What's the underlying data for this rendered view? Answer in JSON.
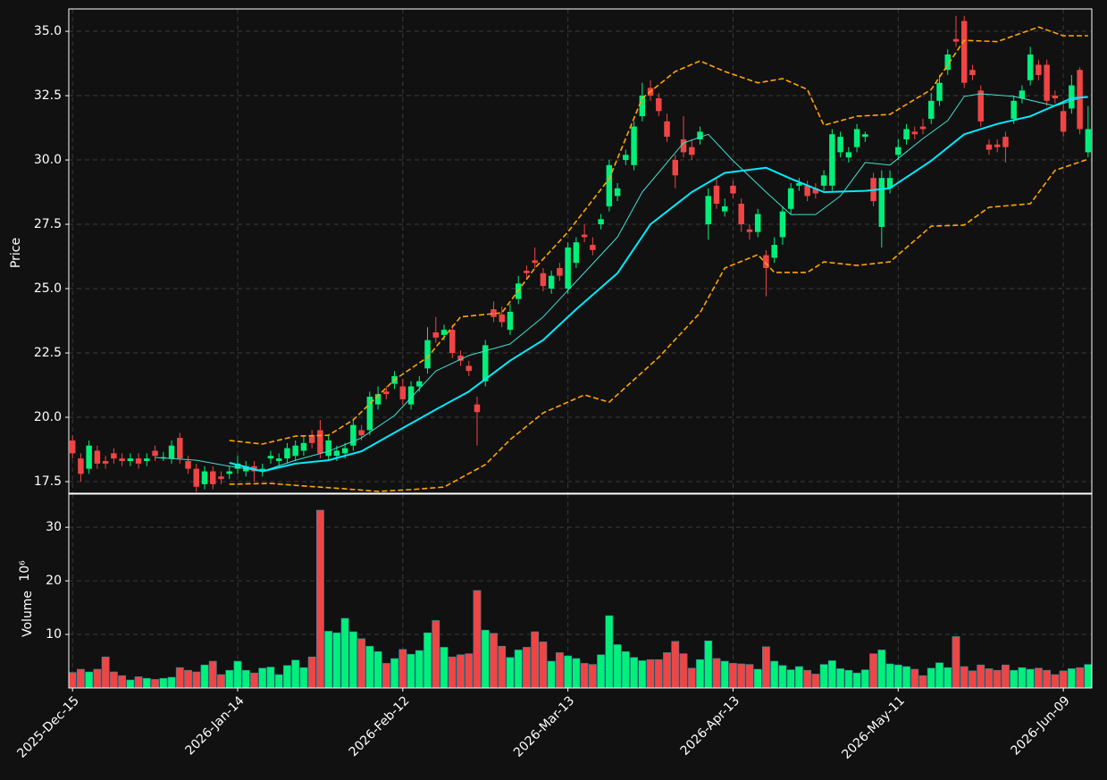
{
  "chart_data": {
    "type": "candlestick",
    "ylabel": "Price",
    "ylim": [
      17.05,
      35.87
    ],
    "yticks": [
      17.5,
      {
        "value": 20,
        "label": "20.0"
      },
      22.5,
      {
        "value": 25,
        "label": "25.0"
      },
      27.5,
      {
        "value": 30,
        "label": "30.0"
      },
      32.5,
      {
        "value": 35,
        "label": "35.0"
      }
    ],
    "xlim": [
      -0.45,
      123.45
    ],
    "xticks": [
      {
        "value": 0,
        "label": "2025-Dec-15"
      },
      {
        "value": 20,
        "label": "2026-Jan-14"
      },
      {
        "value": 40,
        "label": "2026-Feb-12"
      },
      {
        "value": 60,
        "label": "2026-Mar-13"
      },
      {
        "value": 80,
        "label": "2026-Apr-13"
      },
      {
        "value": 100,
        "label": "2026-May-11"
      },
      {
        "value": 120,
        "label": "2026-Jun-09"
      }
    ],
    "grid": true,
    "up_color": "#00f07a",
    "down_color": "#f04545",
    "open": [
      19.1,
      18.4,
      18.0,
      18.7,
      18.3,
      18.6,
      18.4,
      18.3,
      18.4,
      18.3,
      18.7,
      18.4,
      18.4,
      19.2,
      18.3,
      18.0,
      17.4,
      17.9,
      17.7,
      17.8,
      18.0,
      17.9,
      18.1,
      17.95,
      18.4,
      18.3,
      18.4,
      18.5,
      18.7,
      19.3,
      19.5,
      18.5,
      18.5,
      18.6,
      18.9,
      19.5,
      19.5,
      20.5,
      21.0,
      21.3,
      21.2,
      20.5,
      21.2,
      21.9,
      23.3,
      23.2,
      23.4,
      22.4,
      22.0,
      20.5,
      21.4,
      24.2,
      24.0,
      23.4,
      24.6,
      25.7,
      26.1,
      25.6,
      25.0,
      25.8,
      25.0,
      26.0,
      27.1,
      26.7,
      27.5,
      28.2,
      28.6,
      30.0,
      29.8,
      31.7,
      32.8,
      32.4,
      31.5,
      30.0,
      30.8,
      30.5,
      30.8,
      27.5,
      29.0,
      28.0,
      29.0,
      28.3,
      27.3,
      27.2,
      26.3,
      26.2,
      27.0,
      28.1,
      29.0,
      29.0,
      28.9,
      29.0,
      29.0,
      30.3,
      30.1,
      30.5,
      30.9,
      29.3,
      27.4,
      28.9,
      30.2,
      30.8,
      31.1,
      31.3,
      31.6,
      32.3,
      33.5,
      34.7,
      35.4,
      33.5,
      32.7,
      30.6,
      30.6,
      30.9,
      31.6,
      32.4,
      33.1,
      33.7,
      33.7,
      32.5,
      31.9,
      32.0,
      33.5,
      30.3
    ],
    "high": [
      19.3,
      18.6,
      19.1,
      18.9,
      18.5,
      18.8,
      18.6,
      18.6,
      18.6,
      18.6,
      18.9,
      18.65,
      19.1,
      19.4,
      18.5,
      18.2,
      18.1,
      18.1,
      17.9,
      18.1,
      18.5,
      18.3,
      18.3,
      18.2,
      18.7,
      18.6,
      19.0,
      19.1,
      19.3,
      19.5,
      19.9,
      19.3,
      18.9,
      19.0,
      19.9,
      19.7,
      21.0,
      21.2,
      21.2,
      21.8,
      21.5,
      21.4,
      21.6,
      23.5,
      23.9,
      23.6,
      23.6,
      22.6,
      22.2,
      20.8,
      23.0,
      24.5,
      24.3,
      24.4,
      25.5,
      25.9,
      26.6,
      25.8,
      25.7,
      26.0,
      26.8,
      27.0,
      27.5,
      27.0,
      27.9,
      30.0,
      29.1,
      30.4,
      31.5,
      33.0,
      33.1,
      32.6,
      31.8,
      30.2,
      31.7,
      30.8,
      31.3,
      28.9,
      29.3,
      28.5,
      29.2,
      28.5,
      27.5,
      28.1,
      26.5,
      27.0,
      28.2,
      29.1,
      29.3,
      29.2,
      29.1,
      29.6,
      31.2,
      31.1,
      30.5,
      31.4,
      31.1,
      29.5,
      29.6,
      29.6,
      30.8,
      31.4,
      31.3,
      31.6,
      32.6,
      33.3,
      34.3,
      35.6,
      35.6,
      33.7,
      32.9,
      30.8,
      30.8,
      31.1,
      32.5,
      32.9,
      34.4,
      33.9,
      33.9,
      32.7,
      32.3,
      33.3,
      33.6,
      32.1
    ],
    "low": [
      18.4,
      17.5,
      17.8,
      18.0,
      18.0,
      18.2,
      18.1,
      18.1,
      18.0,
      18.1,
      18.3,
      18.3,
      18.2,
      18.2,
      17.8,
      17.1,
      17.2,
      17.2,
      17.4,
      17.6,
      17.8,
      17.7,
      17.5,
      17.7,
      18.2,
      18.1,
      18.2,
      18.3,
      18.5,
      18.8,
      18.4,
      18.3,
      18.3,
      18.4,
      18.7,
      19.1,
      19.3,
      20.3,
      20.7,
      21.1,
      20.5,
      20.3,
      21.0,
      21.7,
      22.9,
      23.0,
      22.3,
      22.0,
      21.6,
      18.9,
      21.2,
      23.7,
      23.5,
      23.2,
      24.4,
      25.4,
      25.8,
      24.9,
      24.8,
      25.3,
      24.8,
      25.8,
      26.8,
      26.3,
      27.3,
      28.0,
      28.4,
      29.8,
      29.6,
      31.5,
      32.3,
      31.7,
      30.7,
      28.9,
      30.1,
      30.0,
      30.6,
      26.9,
      28.1,
      27.8,
      28.5,
      27.2,
      26.9,
      27.0,
      24.7,
      26.0,
      26.7,
      27.9,
      28.8,
      28.4,
      28.5,
      28.8,
      28.8,
      30.1,
      29.9,
      30.3,
      30.7,
      28.2,
      26.6,
      28.7,
      30.0,
      30.6,
      30.8,
      31.0,
      31.4,
      32.1,
      33.3,
      34.4,
      32.8,
      33.1,
      31.3,
      30.2,
      30.3,
      29.9,
      31.4,
      32.2,
      32.9,
      33.1,
      32.1,
      32.2,
      30.9,
      31.8,
      31.0,
      30.1
    ],
    "close": [
      18.6,
      17.8,
      18.9,
      18.2,
      18.2,
      18.4,
      18.3,
      18.4,
      18.2,
      18.4,
      18.5,
      18.45,
      18.9,
      18.4,
      18.0,
      17.3,
      17.9,
      17.4,
      17.6,
      17.9,
      18.2,
      18.1,
      17.9,
      18.0,
      18.5,
      18.4,
      18.8,
      18.9,
      19.0,
      19.0,
      18.6,
      19.1,
      18.7,
      18.8,
      19.7,
      19.3,
      20.8,
      20.9,
      20.9,
      21.6,
      20.7,
      21.2,
      21.4,
      23.0,
      23.1,
      23.4,
      22.5,
      22.2,
      21.8,
      20.2,
      22.8,
      23.9,
      23.7,
      24.1,
      25.2,
      25.6,
      26.0,
      25.1,
      25.5,
      25.5,
      26.6,
      26.8,
      27.0,
      26.5,
      27.7,
      29.8,
      28.9,
      30.2,
      31.3,
      32.5,
      32.5,
      31.9,
      30.9,
      29.4,
      30.3,
      30.2,
      31.1,
      28.6,
      28.3,
      28.2,
      28.7,
      27.5,
      27.2,
      27.9,
      25.8,
      26.7,
      28.0,
      28.9,
      29.1,
      28.6,
      28.7,
      29.4,
      31.0,
      30.9,
      30.3,
      31.2,
      31.0,
      28.4,
      29.3,
      29.3,
      30.5,
      31.2,
      31.0,
      31.2,
      32.3,
      33.0,
      34.1,
      34.6,
      33.0,
      33.3,
      31.5,
      30.4,
      30.5,
      30.5,
      32.3,
      32.7,
      34.1,
      33.3,
      32.3,
      32.4,
      31.1,
      32.9,
      31.2,
      31.2
    ],
    "lines": [
      {
        "color": "#ffa500",
        "width": 1.6,
        "dashed": true,
        "x": [
          19,
          23,
          27,
          31,
          34,
          39,
          43,
          47,
          52,
          56,
          60,
          65,
          69,
          73,
          76,
          79,
          83,
          86,
          89,
          91,
          95,
          99,
          104,
          108,
          112,
          117,
          120,
          123
        ],
        "values": [
          19.1,
          18.96,
          19.27,
          19.3,
          19.9,
          21.46,
          22.33,
          23.9,
          24.06,
          25.8,
          27.2,
          29.27,
          32.4,
          33.44,
          33.85,
          33.44,
          33.0,
          33.16,
          32.74,
          31.35,
          31.7,
          31.77,
          32.74,
          34.65,
          34.6,
          35.17,
          34.83,
          34.83
        ]
      },
      {
        "color": "#ffa500",
        "width": 1.6,
        "dashed": true,
        "x": [
          19,
          24,
          28,
          33,
          37,
          41,
          45,
          50,
          53,
          57,
          62,
          65,
          68,
          71,
          76,
          79,
          83,
          85,
          89,
          91,
          95,
          99,
          104,
          108,
          111,
          116,
          119,
          123
        ],
        "values": [
          17.4,
          17.43,
          17.33,
          17.22,
          17.12,
          17.19,
          17.29,
          18.16,
          19.13,
          20.17,
          20.87,
          20.59,
          21.46,
          22.33,
          24.06,
          25.8,
          26.32,
          25.63,
          25.63,
          26.04,
          25.9,
          26.04,
          27.43,
          27.47,
          28.16,
          28.3,
          29.6,
          30.03
        ]
      },
      {
        "color": "#40e0d0",
        "width": 1,
        "dashed": false,
        "x": [
          10,
          15,
          19,
          23,
          27,
          31,
          35,
          39,
          44,
          48,
          53,
          57,
          61,
          66,
          69,
          74,
          77,
          80,
          84,
          87,
          90,
          93,
          96,
          99,
          103,
          106,
          108,
          110,
          114,
          119,
          122
        ],
        "values": [
          18.44,
          18.33,
          18.1,
          17.9,
          18.33,
          18.68,
          19.2,
          20.07,
          21.8,
          22.4,
          22.85,
          23.9,
          25.28,
          27.0,
          28.75,
          30.66,
          31.0,
          29.97,
          28.75,
          27.88,
          27.88,
          28.6,
          29.9,
          29.8,
          30.83,
          31.53,
          32.47,
          32.57,
          32.47,
          32.1,
          32.4
        ]
      },
      {
        "color": "#00eaff",
        "width": 2,
        "dashed": false,
        "x": [
          19,
          23,
          27,
          31,
          35,
          39,
          44,
          48,
          53,
          57,
          61,
          66,
          70,
          75,
          79,
          84,
          87,
          91,
          96,
          99,
          104,
          108,
          112,
          116,
          121,
          123
        ],
        "values": [
          18.23,
          17.9,
          18.2,
          18.33,
          18.68,
          19.4,
          20.3,
          21.0,
          22.2,
          23.0,
          24.2,
          25.6,
          27.5,
          28.75,
          29.5,
          29.7,
          29.27,
          28.75,
          28.8,
          28.9,
          29.97,
          31.0,
          31.4,
          31.7,
          32.4,
          32.45
        ]
      }
    ],
    "volume": {
      "ylabel": "Volume",
      "exponent": "10⁶",
      "ylim": [
        0,
        36.2
      ],
      "yticks": [
        10,
        20,
        30
      ],
      "values": [
        2.9,
        3.5,
        3.0,
        3.5,
        5.8,
        3.0,
        2.3,
        1.5,
        2.1,
        1.8,
        1.6,
        1.8,
        2.0,
        3.8,
        3.3,
        3.0,
        4.3,
        5.0,
        2.5,
        3.3,
        5.0,
        3.3,
        2.8,
        3.7,
        3.9,
        2.5,
        4.2,
        5.2,
        3.8,
        5.8,
        33.2,
        10.6,
        10.3,
        13.0,
        10.5,
        9.2,
        7.8,
        6.8,
        4.6,
        5.5,
        7.2,
        6.3,
        7.0,
        10.3,
        12.6,
        7.6,
        5.8,
        6.2,
        6.4,
        18.2,
        10.8,
        10.2,
        7.8,
        5.7,
        7.1,
        7.6,
        10.5,
        8.6,
        5.0,
        6.6,
        6.0,
        5.5,
        4.6,
        4.4,
        6.2,
        13.5,
        8.1,
        6.8,
        5.7,
        5.1,
        5.3,
        5.3,
        6.6,
        8.7,
        6.4,
        3.7,
        5.3,
        8.8,
        5.5,
        5.0,
        4.6,
        4.5,
        4.4,
        3.5,
        7.7,
        5.0,
        4.2,
        3.4,
        4.0,
        3.3,
        2.6,
        4.4,
        5.1,
        3.6,
        3.3,
        2.8,
        3.4,
        6.4,
        7.1,
        4.5,
        4.3,
        4.0,
        3.5,
        2.3,
        3.7,
        4.7,
        3.8,
        9.6,
        4.0,
        3.2,
        4.3,
        3.6,
        3.3,
        4.3,
        3.3,
        3.8,
        3.5,
        3.7,
        3.3,
        2.5,
        3.2,
        3.6,
        3.8,
        4.4
      ]
    }
  }
}
